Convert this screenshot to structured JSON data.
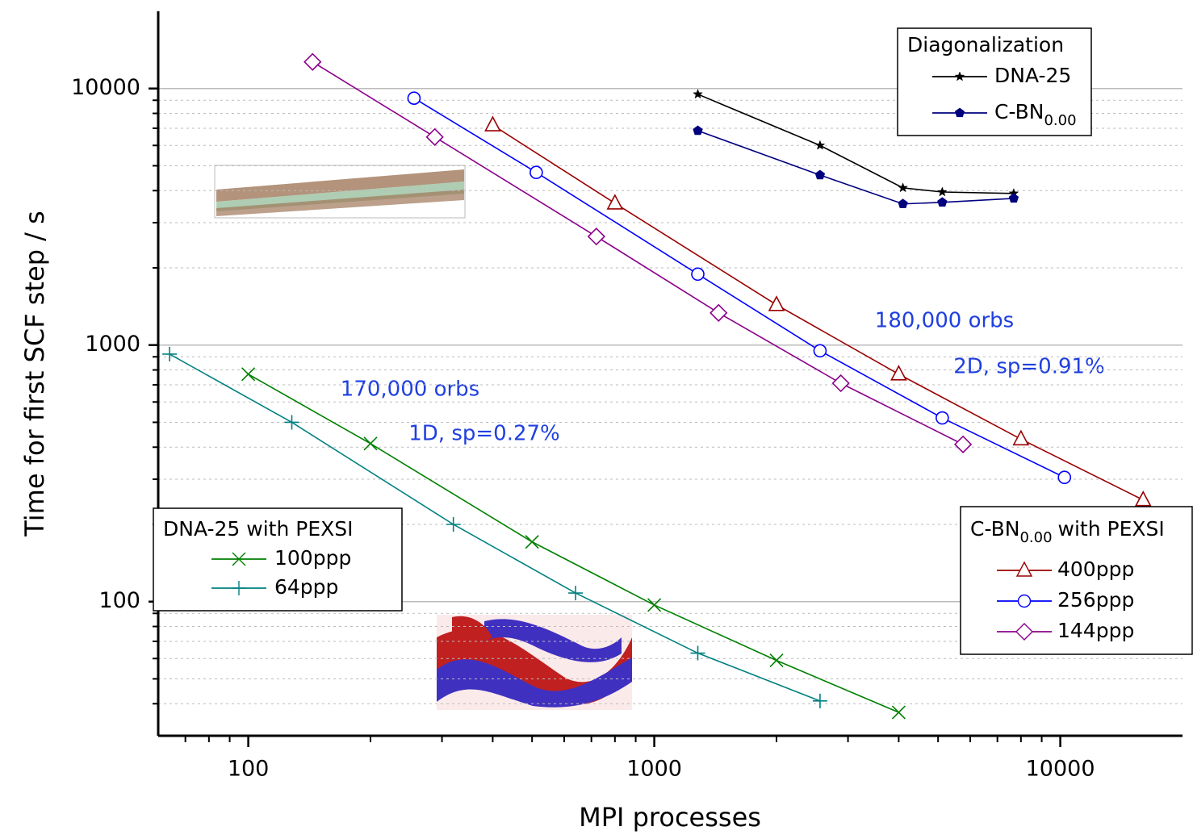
{
  "chart_data": {
    "type": "line",
    "x_label": "MPI processes",
    "y_label": "Time for first SCF step / s",
    "xlog": true,
    "ylog": true,
    "xlim": [
      60,
      20000
    ],
    "ylim": [
      30,
      20000
    ],
    "xticks": [
      100,
      1000,
      10000
    ],
    "xminorticks": [
      70,
      80,
      90,
      200,
      300,
      400,
      500,
      600,
      700,
      800,
      900,
      2000,
      3000,
      4000,
      5000,
      6000,
      7000,
      8000,
      9000
    ],
    "yticks": [
      100,
      1000,
      10000
    ],
    "yminorticks": [
      40,
      50,
      60,
      70,
      80,
      90,
      200,
      300,
      400,
      500,
      600,
      700,
      800,
      900,
      2000,
      3000,
      4000,
      5000,
      6000,
      7000,
      8000,
      9000
    ],
    "grid": true,
    "annotation_color": "#1f3fe0",
    "annotations": [
      {
        "text": "180,000 orbs"
      },
      {
        "text": "2D, sp=0.91%"
      },
      {
        "text": "170,000 orbs"
      },
      {
        "text": "1D, sp=0.27%"
      }
    ],
    "groups": [
      {
        "title": "Diagonalization",
        "legend": "upper right",
        "series": [
          {
            "name": "DNA-25",
            "color": "#000000",
            "marker": "star",
            "x": [
              1280,
              2560,
              4096,
              5120,
              7680
            ],
            "values": [
              9500,
              6000,
              4100,
              3950,
              3900
            ]
          },
          {
            "name": "C-BN",
            "name_sub": "0.00",
            "color": "#00007f",
            "marker": "pentagon",
            "x": [
              1280,
              2560,
              4096,
              5120,
              7680
            ],
            "values": [
              6850,
              4600,
              3550,
              3600,
              3730
            ]
          }
        ]
      },
      {
        "title": "DNA-25 with PEXSI",
        "legend": "lower left",
        "series": [
          {
            "name": "100ppp",
            "color": "#008000",
            "marker": "x",
            "x": [
              100,
              200,
              500,
              1000,
              2000,
              4000
            ],
            "values": [
              770,
              413,
              171,
              97,
              59,
              37
            ]
          },
          {
            "name": "64ppp",
            "color": "#008080",
            "marker": "plus",
            "x": [
              64,
              128,
              320,
              640,
              1280,
              2560
            ],
            "values": [
              922,
              500,
              200,
              108,
              63,
              41
            ]
          }
        ]
      },
      {
        "title": "C-BN",
        "title_sub": "0.00",
        "title_after": "with PEXSI",
        "legend": "lower right",
        "series": [
          {
            "name": "400ppp",
            "color": "#990000",
            "marker": "triangle",
            "x": [
              400,
              800,
              2000,
              4000,
              8000,
              16000
            ],
            "values": [
              7200,
              3570,
              1435,
              770,
              430,
              249
            ]
          },
          {
            "name": "256ppp",
            "color": "#0000ff",
            "marker": "circle",
            "x": [
              256,
              512,
              1280,
              2560,
              5120,
              10240
            ],
            "values": [
              9170,
              4710,
              1890,
              950,
              520,
              305
            ]
          },
          {
            "name": "144ppp",
            "color": "#8b008b",
            "marker": "diamond",
            "x": [
              144,
              288,
              720,
              1440,
              2880,
              5760
            ],
            "values": [
              12700,
              6470,
              2650,
              1335,
              710,
              410
            ]
          }
        ]
      }
    ]
  }
}
